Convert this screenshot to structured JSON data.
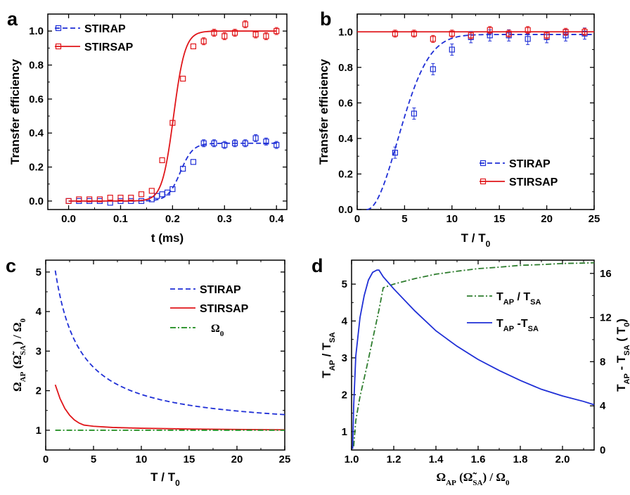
{
  "colors": {
    "stirap": "#1f2fd6",
    "stirsap": "#e0161a",
    "omega0": "#1a8a1a",
    "ratio": "#2e7d2e",
    "diff": "#1f2fd6"
  },
  "chart_data": [
    {
      "panel": "a",
      "type": "line",
      "xlabel": "t (ms)",
      "ylabel": "Transfer efficiency",
      "xlim": [
        -0.04,
        0.42
      ],
      "ylim": [
        -0.05,
        1.1
      ],
      "xticks": [
        "0.0",
        "0.1",
        "0.2",
        "0.3",
        "0.4"
      ],
      "yticks": [
        "0.0",
        "0.2",
        "0.4",
        "0.6",
        "0.8",
        "1.0"
      ],
      "legend_position": "top-left",
      "series": [
        {
          "name": "STIRAP",
          "style": "dashed",
          "marker": "square",
          "fit": {
            "model": "logistic",
            "low": 0.0,
            "high": 0.34,
            "x0": 0.215,
            "width": 0.012
          },
          "points": [
            [
              0.0,
              0.0
            ],
            [
              0.02,
              0.0
            ],
            [
              0.04,
              0.0
            ],
            [
              0.06,
              0.0
            ],
            [
              0.08,
              -0.01
            ],
            [
              0.1,
              0.0
            ],
            [
              0.12,
              0.0
            ],
            [
              0.14,
              0.0
            ],
            [
              0.16,
              0.01
            ],
            [
              0.17,
              0.03
            ],
            [
              0.18,
              0.04
            ],
            [
              0.19,
              0.05
            ],
            [
              0.2,
              0.07
            ],
            [
              0.22,
              0.19
            ],
            [
              0.24,
              0.23
            ],
            [
              0.26,
              0.34
            ],
            [
              0.28,
              0.34
            ],
            [
              0.3,
              0.33
            ],
            [
              0.32,
              0.34
            ],
            [
              0.34,
              0.34
            ],
            [
              0.36,
              0.37
            ],
            [
              0.38,
              0.35
            ],
            [
              0.4,
              0.33
            ]
          ]
        },
        {
          "name": "STIRSAP",
          "style": "solid",
          "marker": "square",
          "fit": {
            "model": "logistic",
            "low": 0.0,
            "high": 1.0,
            "x0": 0.202,
            "width": 0.011
          },
          "points": [
            [
              0.0,
              0.0
            ],
            [
              0.02,
              0.01
            ],
            [
              0.04,
              0.01
            ],
            [
              0.06,
              0.01
            ],
            [
              0.08,
              0.02
            ],
            [
              0.1,
              0.02
            ],
            [
              0.12,
              0.02
            ],
            [
              0.14,
              0.04
            ],
            [
              0.16,
              0.06
            ],
            [
              0.18,
              0.24
            ],
            [
              0.2,
              0.46
            ],
            [
              0.22,
              0.72
            ],
            [
              0.24,
              0.91
            ],
            [
              0.26,
              0.94
            ],
            [
              0.28,
              0.99
            ],
            [
              0.3,
              0.97
            ],
            [
              0.32,
              0.99
            ],
            [
              0.34,
              1.04
            ],
            [
              0.36,
              0.98
            ],
            [
              0.38,
              0.97
            ],
            [
              0.4,
              1.0
            ]
          ]
        }
      ]
    },
    {
      "panel": "b",
      "type": "line",
      "xlabel": "T / T",
      "xlabel_sub": "0",
      "ylabel": "Transfer efficiency",
      "xlim": [
        0,
        25
      ],
      "ylim": [
        0,
        1.1
      ],
      "xticks": [
        "0",
        "5",
        "10",
        "15",
        "20",
        "25"
      ],
      "yticks": [
        "0.0",
        "0.2",
        "0.4",
        "0.6",
        "0.8",
        "1.0"
      ],
      "legend_position": "bottom-right",
      "series": [
        {
          "name": "STIRAP",
          "style": "dashed",
          "marker": "square",
          "fit": {
            "model": "1-exp",
            "x_start": 1.0,
            "scale": 4.6,
            "power": 2,
            "high": 0.985
          },
          "points": [
            [
              4,
              0.32
            ],
            [
              6,
              0.54
            ],
            [
              8,
              0.79
            ],
            [
              10,
              0.9
            ],
            [
              12,
              0.97
            ],
            [
              14,
              0.98
            ],
            [
              16,
              0.98
            ],
            [
              18,
              0.96
            ],
            [
              20,
              0.97
            ],
            [
              22,
              0.98
            ],
            [
              24,
              0.99
            ]
          ]
        },
        {
          "name": "STIRSAP",
          "style": "solid",
          "marker": "square",
          "fit": {
            "model": "constant",
            "value": 1.0
          },
          "points": [
            [
              4,
              0.99
            ],
            [
              6,
              0.99
            ],
            [
              8,
              0.96
            ],
            [
              10,
              0.99
            ],
            [
              12,
              0.98
            ],
            [
              14,
              1.01
            ],
            [
              16,
              0.99
            ],
            [
              18,
              1.01
            ],
            [
              20,
              0.98
            ],
            [
              22,
              1.0
            ],
            [
              24,
              1.0
            ]
          ]
        }
      ]
    },
    {
      "panel": "c",
      "type": "line",
      "xlabel": "T / T",
      "xlabel_sub": "0",
      "ylabel_parts": [
        "Ω",
        "AP",
        " (",
        "Ω̃",
        "SA",
        ") / Ω",
        "0"
      ],
      "xlim": [
        0,
        25
      ],
      "ylim": [
        0.5,
        5.3
      ],
      "xticks": [
        "0",
        "5",
        "10",
        "15",
        "20",
        "25"
      ],
      "yticks": [
        "1",
        "2",
        "3",
        "4",
        "5"
      ],
      "legend_position": "top-right",
      "series": [
        {
          "name": "STIRAP",
          "style": "dashed",
          "model": "1+a/(x+b)",
          "a": 10.5,
          "b": 1.6,
          "x_range": [
            1,
            25
          ]
        },
        {
          "name": "STIRSAP",
          "style": "solid",
          "x_range": [
            1,
            25
          ],
          "points": [
            [
              1,
              2.15
            ],
            [
              1.5,
              1.8
            ],
            [
              2,
              1.55
            ],
            [
              2.5,
              1.38
            ],
            [
              3,
              1.26
            ],
            [
              3.5,
              1.18
            ],
            [
              4,
              1.13
            ],
            [
              5,
              1.1
            ],
            [
              7,
              1.07
            ],
            [
              10,
              1.05
            ],
            [
              15,
              1.03
            ],
            [
              20,
              1.02
            ],
            [
              25,
              1.01
            ]
          ]
        },
        {
          "name": "Ω",
          "name_sub": "0",
          "style": "dashdot",
          "model": "constant",
          "value": 1.0,
          "x_range": [
            1,
            25
          ]
        }
      ]
    },
    {
      "panel": "d",
      "type": "line",
      "xlabel_parts": [
        "Ω",
        "AP",
        " (",
        "Ω̃",
        "SA",
        ") / Ω",
        "0"
      ],
      "ylabel_left": "T / T",
      "ylabel_left_subs": [
        "AP",
        "SA"
      ],
      "ylabel_right": "T - T ( T )",
      "ylabel_right_subs": [
        "AP",
        "SA",
        "0"
      ],
      "xlim": [
        1.0,
        2.15
      ],
      "ylim_left": [
        0.5,
        5.65
      ],
      "ylim_right": [
        0,
        17.2
      ],
      "xticks": [
        "1.0",
        "1.2",
        "1.4",
        "1.6",
        "1.8",
        "2.0"
      ],
      "yticks_left": [
        "1",
        "2",
        "3",
        "4",
        "5"
      ],
      "yticks_right": [
        "0",
        "4",
        "8",
        "12",
        "16"
      ],
      "legend_position": "top-right",
      "series": [
        {
          "name": "T / T",
          "name_subs": [
            "AP",
            "SA"
          ],
          "style": "dashdot",
          "axis": "left",
          "points": [
            [
              1.01,
              0.6
            ],
            [
              1.02,
              1.3
            ],
            [
              1.04,
              1.95
            ],
            [
              1.07,
              2.7
            ],
            [
              1.1,
              3.5
            ],
            [
              1.13,
              4.3
            ],
            [
              1.15,
              4.9
            ],
            [
              1.2,
              5.0
            ],
            [
              1.3,
              5.15
            ],
            [
              1.4,
              5.27
            ],
            [
              1.5,
              5.35
            ],
            [
              1.6,
              5.42
            ],
            [
              1.7,
              5.46
            ],
            [
              1.8,
              5.51
            ],
            [
              1.9,
              5.53
            ],
            [
              2.0,
              5.56
            ],
            [
              2.1,
              5.57
            ],
            [
              2.15,
              5.58
            ]
          ]
        },
        {
          "name": "T -T",
          "name_subs": [
            "AP",
            "SA"
          ],
          "style": "solid",
          "axis": "right",
          "points": [
            [
              1.005,
              0.1
            ],
            [
              1.01,
              4.0
            ],
            [
              1.02,
              8.5
            ],
            [
              1.04,
              12.0
            ],
            [
              1.06,
              14.0
            ],
            [
              1.08,
              15.4
            ],
            [
              1.1,
              16.1
            ],
            [
              1.12,
              16.3
            ],
            [
              1.13,
              16.3
            ],
            [
              1.15,
              15.7
            ],
            [
              1.2,
              14.6
            ],
            [
              1.3,
              12.6
            ],
            [
              1.4,
              10.8
            ],
            [
              1.5,
              9.4
            ],
            [
              1.6,
              8.2
            ],
            [
              1.7,
              7.2
            ],
            [
              1.8,
              6.3
            ],
            [
              1.9,
              5.5
            ],
            [
              2.0,
              4.9
            ],
            [
              2.1,
              4.4
            ],
            [
              2.15,
              4.1
            ]
          ]
        }
      ]
    }
  ]
}
